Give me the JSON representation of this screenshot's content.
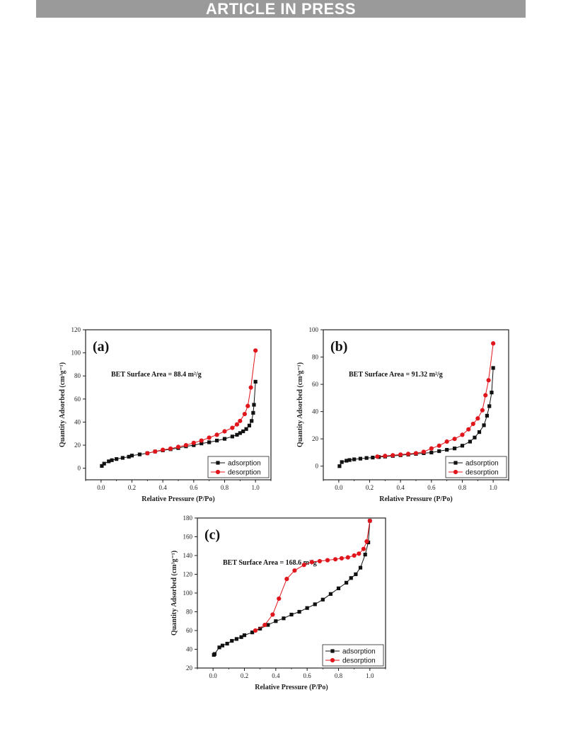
{
  "header": {
    "banner": "ARTICLE IN PRESS"
  },
  "colors": {
    "banner_bg": "#9a9a9a",
    "adsorption": "#111111",
    "desorption": "#e0161c"
  },
  "chart_data": [
    {
      "type": "scatter",
      "panel_label": "(a)",
      "annotation": "BET Surface Area = 88.4 m²/g",
      "xlabel": "Relative Pressure (P/Po)",
      "ylabel": "Quantity Adsorbed (cm³g⁻¹)",
      "xlim": [
        -0.1,
        1.1
      ],
      "ylim": [
        -10,
        120
      ],
      "xticks": [
        0.0,
        0.2,
        0.4,
        0.6,
        0.8,
        1.0
      ],
      "xtick_labels": [
        "0.0",
        "0.2",
        "0.4",
        "0.6",
        "0.8",
        "1.0"
      ],
      "yticks": [
        0,
        20,
        40,
        60,
        80,
        100,
        120
      ],
      "ytick_labels": [
        "0",
        "20",
        "40",
        "60",
        "80",
        "100",
        "120"
      ],
      "legend_position": "bottom-right",
      "series": [
        {
          "name": "adsorption",
          "marker": "square",
          "color": "#111111",
          "x": [
            0.005,
            0.02,
            0.05,
            0.07,
            0.1,
            0.14,
            0.18,
            0.2,
            0.25,
            0.3,
            0.35,
            0.4,
            0.45,
            0.5,
            0.55,
            0.6,
            0.65,
            0.7,
            0.75,
            0.8,
            0.85,
            0.88,
            0.9,
            0.92,
            0.94,
            0.96,
            0.975,
            0.985,
            0.99,
            1.0
          ],
          "y": [
            2,
            4,
            6,
            7,
            8,
            9,
            10,
            11,
            12,
            13,
            14.5,
            15.5,
            16.5,
            17.5,
            19,
            20,
            21.5,
            22.5,
            24,
            25.5,
            27.5,
            29,
            30.5,
            32,
            34,
            37,
            41,
            48,
            55,
            75
          ]
        },
        {
          "name": "desorption",
          "marker": "circle",
          "color": "#e0161c",
          "x": [
            0.3,
            0.35,
            0.4,
            0.45,
            0.5,
            0.55,
            0.6,
            0.65,
            0.7,
            0.75,
            0.8,
            0.85,
            0.88,
            0.9,
            0.93,
            0.95,
            0.97,
            1.0
          ],
          "y": [
            13,
            14.5,
            16,
            17,
            18.5,
            20,
            22,
            24,
            26.5,
            29,
            32,
            35,
            38,
            41,
            47,
            54,
            70,
            102
          ]
        }
      ]
    },
    {
      "type": "scatter",
      "panel_label": "(b)",
      "annotation": "BET Surface Area = 91.32 m²/g",
      "xlabel": "Relative Pressure (P/Po)",
      "ylabel": "Quantity Adsorbed (cm³g⁻¹)",
      "xlim": [
        -0.1,
        1.1
      ],
      "ylim": [
        -10,
        100
      ],
      "xticks": [
        0.0,
        0.2,
        0.4,
        0.6,
        0.8,
        1.0
      ],
      "xtick_labels": [
        "0.0",
        "0.2",
        "0.4",
        "0.6",
        "0.8",
        "1.0"
      ],
      "yticks": [
        0,
        20,
        40,
        60,
        80,
        100
      ],
      "ytick_labels": [
        "0",
        "20",
        "40",
        "60",
        "80",
        "100"
      ],
      "legend_position": "bottom-right",
      "series": [
        {
          "name": "adsorption",
          "marker": "square",
          "color": "#111111",
          "x": [
            0.005,
            0.02,
            0.05,
            0.07,
            0.1,
            0.14,
            0.18,
            0.22,
            0.26,
            0.3,
            0.35,
            0.4,
            0.45,
            0.5,
            0.55,
            0.6,
            0.65,
            0.7,
            0.75,
            0.8,
            0.85,
            0.88,
            0.91,
            0.94,
            0.96,
            0.975,
            0.99,
            1.0
          ],
          "y": [
            0,
            3,
            4,
            4.5,
            5,
            5.5,
            6,
            6.3,
            6.7,
            7,
            7.5,
            8,
            8.5,
            9,
            9.5,
            10,
            11,
            12,
            13,
            15,
            18,
            21,
            25,
            30,
            37,
            44,
            54,
            72
          ]
        },
        {
          "name": "desorption",
          "marker": "circle",
          "color": "#e0161c",
          "x": [
            0.25,
            0.3,
            0.35,
            0.4,
            0.45,
            0.5,
            0.55,
            0.6,
            0.65,
            0.7,
            0.75,
            0.8,
            0.84,
            0.87,
            0.9,
            0.93,
            0.95,
            0.97,
            1.0
          ],
          "y": [
            7,
            7.5,
            8,
            8.5,
            9,
            9.5,
            10.5,
            13,
            15,
            18,
            20,
            23,
            27,
            31,
            35,
            41,
            52,
            63,
            90
          ]
        }
      ]
    },
    {
      "type": "scatter",
      "panel_label": "(c)",
      "annotation": "BET Surface Area = 168.6 m²/g",
      "xlabel": "Relative Pressure (P/Po)",
      "ylabel": "Quantity Adsorbed (cm³g⁻¹)",
      "xlim": [
        -0.1,
        1.1
      ],
      "ylim": [
        20,
        180
      ],
      "xticks": [
        0.0,
        0.2,
        0.4,
        0.6,
        0.8,
        1.0
      ],
      "xtick_labels": [
        "0.0",
        "0.2",
        "0.4",
        "0.6",
        "0.8",
        "1.0"
      ],
      "yticks": [
        20,
        40,
        60,
        80,
        100,
        120,
        140,
        160,
        180
      ],
      "ytick_labels": [
        "20",
        "40",
        "60",
        "80",
        "100",
        "120",
        "140",
        "160",
        "180"
      ],
      "legend_position": "bottom-right",
      "series": [
        {
          "name": "adsorption",
          "marker": "square",
          "color": "#111111",
          "x": [
            0.005,
            0.01,
            0.04,
            0.06,
            0.09,
            0.12,
            0.15,
            0.18,
            0.2,
            0.25,
            0.3,
            0.35,
            0.4,
            0.45,
            0.5,
            0.55,
            0.6,
            0.65,
            0.7,
            0.75,
            0.8,
            0.85,
            0.88,
            0.91,
            0.94,
            0.97,
            0.99,
            1.0
          ],
          "y": [
            34,
            35,
            42,
            44,
            46,
            49,
            51,
            53,
            55,
            58,
            62,
            66,
            70,
            73,
            77,
            80,
            84,
            88,
            93,
            99,
            105,
            111,
            116,
            120,
            127,
            141,
            154,
            177
          ]
        },
        {
          "name": "desorption",
          "marker": "circle",
          "color": "#e0161c",
          "x": [
            0.27,
            0.33,
            0.38,
            0.42,
            0.47,
            0.52,
            0.58,
            0.63,
            0.68,
            0.73,
            0.78,
            0.82,
            0.86,
            0.9,
            0.93,
            0.96,
            0.98,
            1.0
          ],
          "y": [
            60,
            66,
            77,
            94,
            115,
            124,
            130,
            133,
            134,
            135,
            136,
            137,
            138,
            140,
            142,
            147,
            155,
            177
          ]
        }
      ]
    }
  ]
}
